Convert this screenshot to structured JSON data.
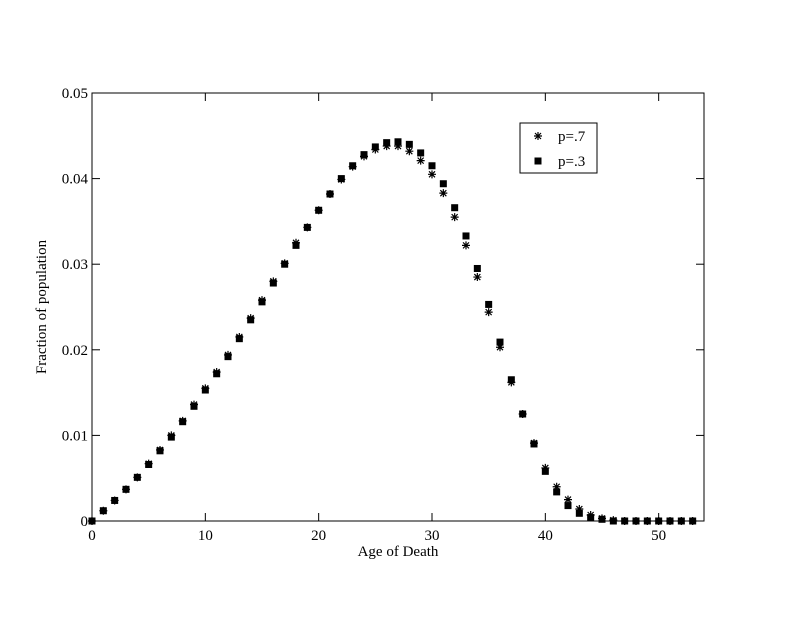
{
  "chart_data": {
    "type": "scatter",
    "x_label": "Age of Death",
    "y_label": "Fraction of population",
    "x": [
      0,
      1,
      2,
      3,
      4,
      5,
      6,
      7,
      8,
      9,
      10,
      11,
      12,
      13,
      14,
      15,
      16,
      17,
      18,
      19,
      20,
      21,
      22,
      23,
      24,
      25,
      26,
      27,
      28,
      29,
      30,
      31,
      32,
      33,
      34,
      35,
      36,
      37,
      38,
      39,
      40,
      41,
      42,
      43,
      44,
      45,
      46,
      47,
      48,
      49,
      50,
      51,
      52,
      53
    ],
    "series": [
      {
        "name": "p=.7",
        "color": "#000000",
        "marker": "star",
        "values": [
          0,
          0.0012,
          0.0024,
          0.0037,
          0.0051,
          0.0067,
          0.0083,
          0.01,
          0.0117,
          0.0136,
          0.0155,
          0.0174,
          0.0194,
          0.0215,
          0.0237,
          0.0258,
          0.028,
          0.0301,
          0.0325,
          0.0343,
          0.0363,
          0.0382,
          0.0399,
          0.0414,
          0.0426,
          0.0434,
          0.0438,
          0.0438,
          0.0432,
          0.0421,
          0.0405,
          0.0383,
          0.0355,
          0.0322,
          0.0285,
          0.0244,
          0.0203,
          0.0162,
          0.0125,
          0.0091,
          0.0062,
          0.004,
          0.0025,
          0.0014,
          0.0007,
          0.0003,
          0.0001,
          0,
          0,
          0,
          0,
          0,
          0,
          0
        ]
      },
      {
        "name": "p=.3",
        "color": "#000000",
        "marker": "square",
        "values": [
          0,
          0.0012,
          0.0024,
          0.0037,
          0.0051,
          0.0066,
          0.0082,
          0.0098,
          0.0116,
          0.0134,
          0.0153,
          0.0172,
          0.0192,
          0.0213,
          0.0235,
          0.0256,
          0.0278,
          0.03,
          0.0322,
          0.0343,
          0.0363,
          0.0382,
          0.04,
          0.0415,
          0.0428,
          0.0437,
          0.0442,
          0.0443,
          0.044,
          0.043,
          0.0415,
          0.0394,
          0.0366,
          0.0333,
          0.0295,
          0.0253,
          0.0209,
          0.0165,
          0.0125,
          0.009,
          0.0058,
          0.0034,
          0.0018,
          0.0009,
          0.0004,
          0.0002,
          0,
          0,
          0,
          0,
          0,
          0,
          0,
          0
        ]
      }
    ],
    "xlim": [
      0,
      54
    ],
    "ylim": [
      0,
      0.05
    ],
    "xticks": [
      0,
      10,
      20,
      30,
      40,
      50
    ],
    "yticks": [
      0,
      0.01,
      0.02,
      0.03,
      0.04,
      0.05
    ],
    "legend": "upper right"
  }
}
